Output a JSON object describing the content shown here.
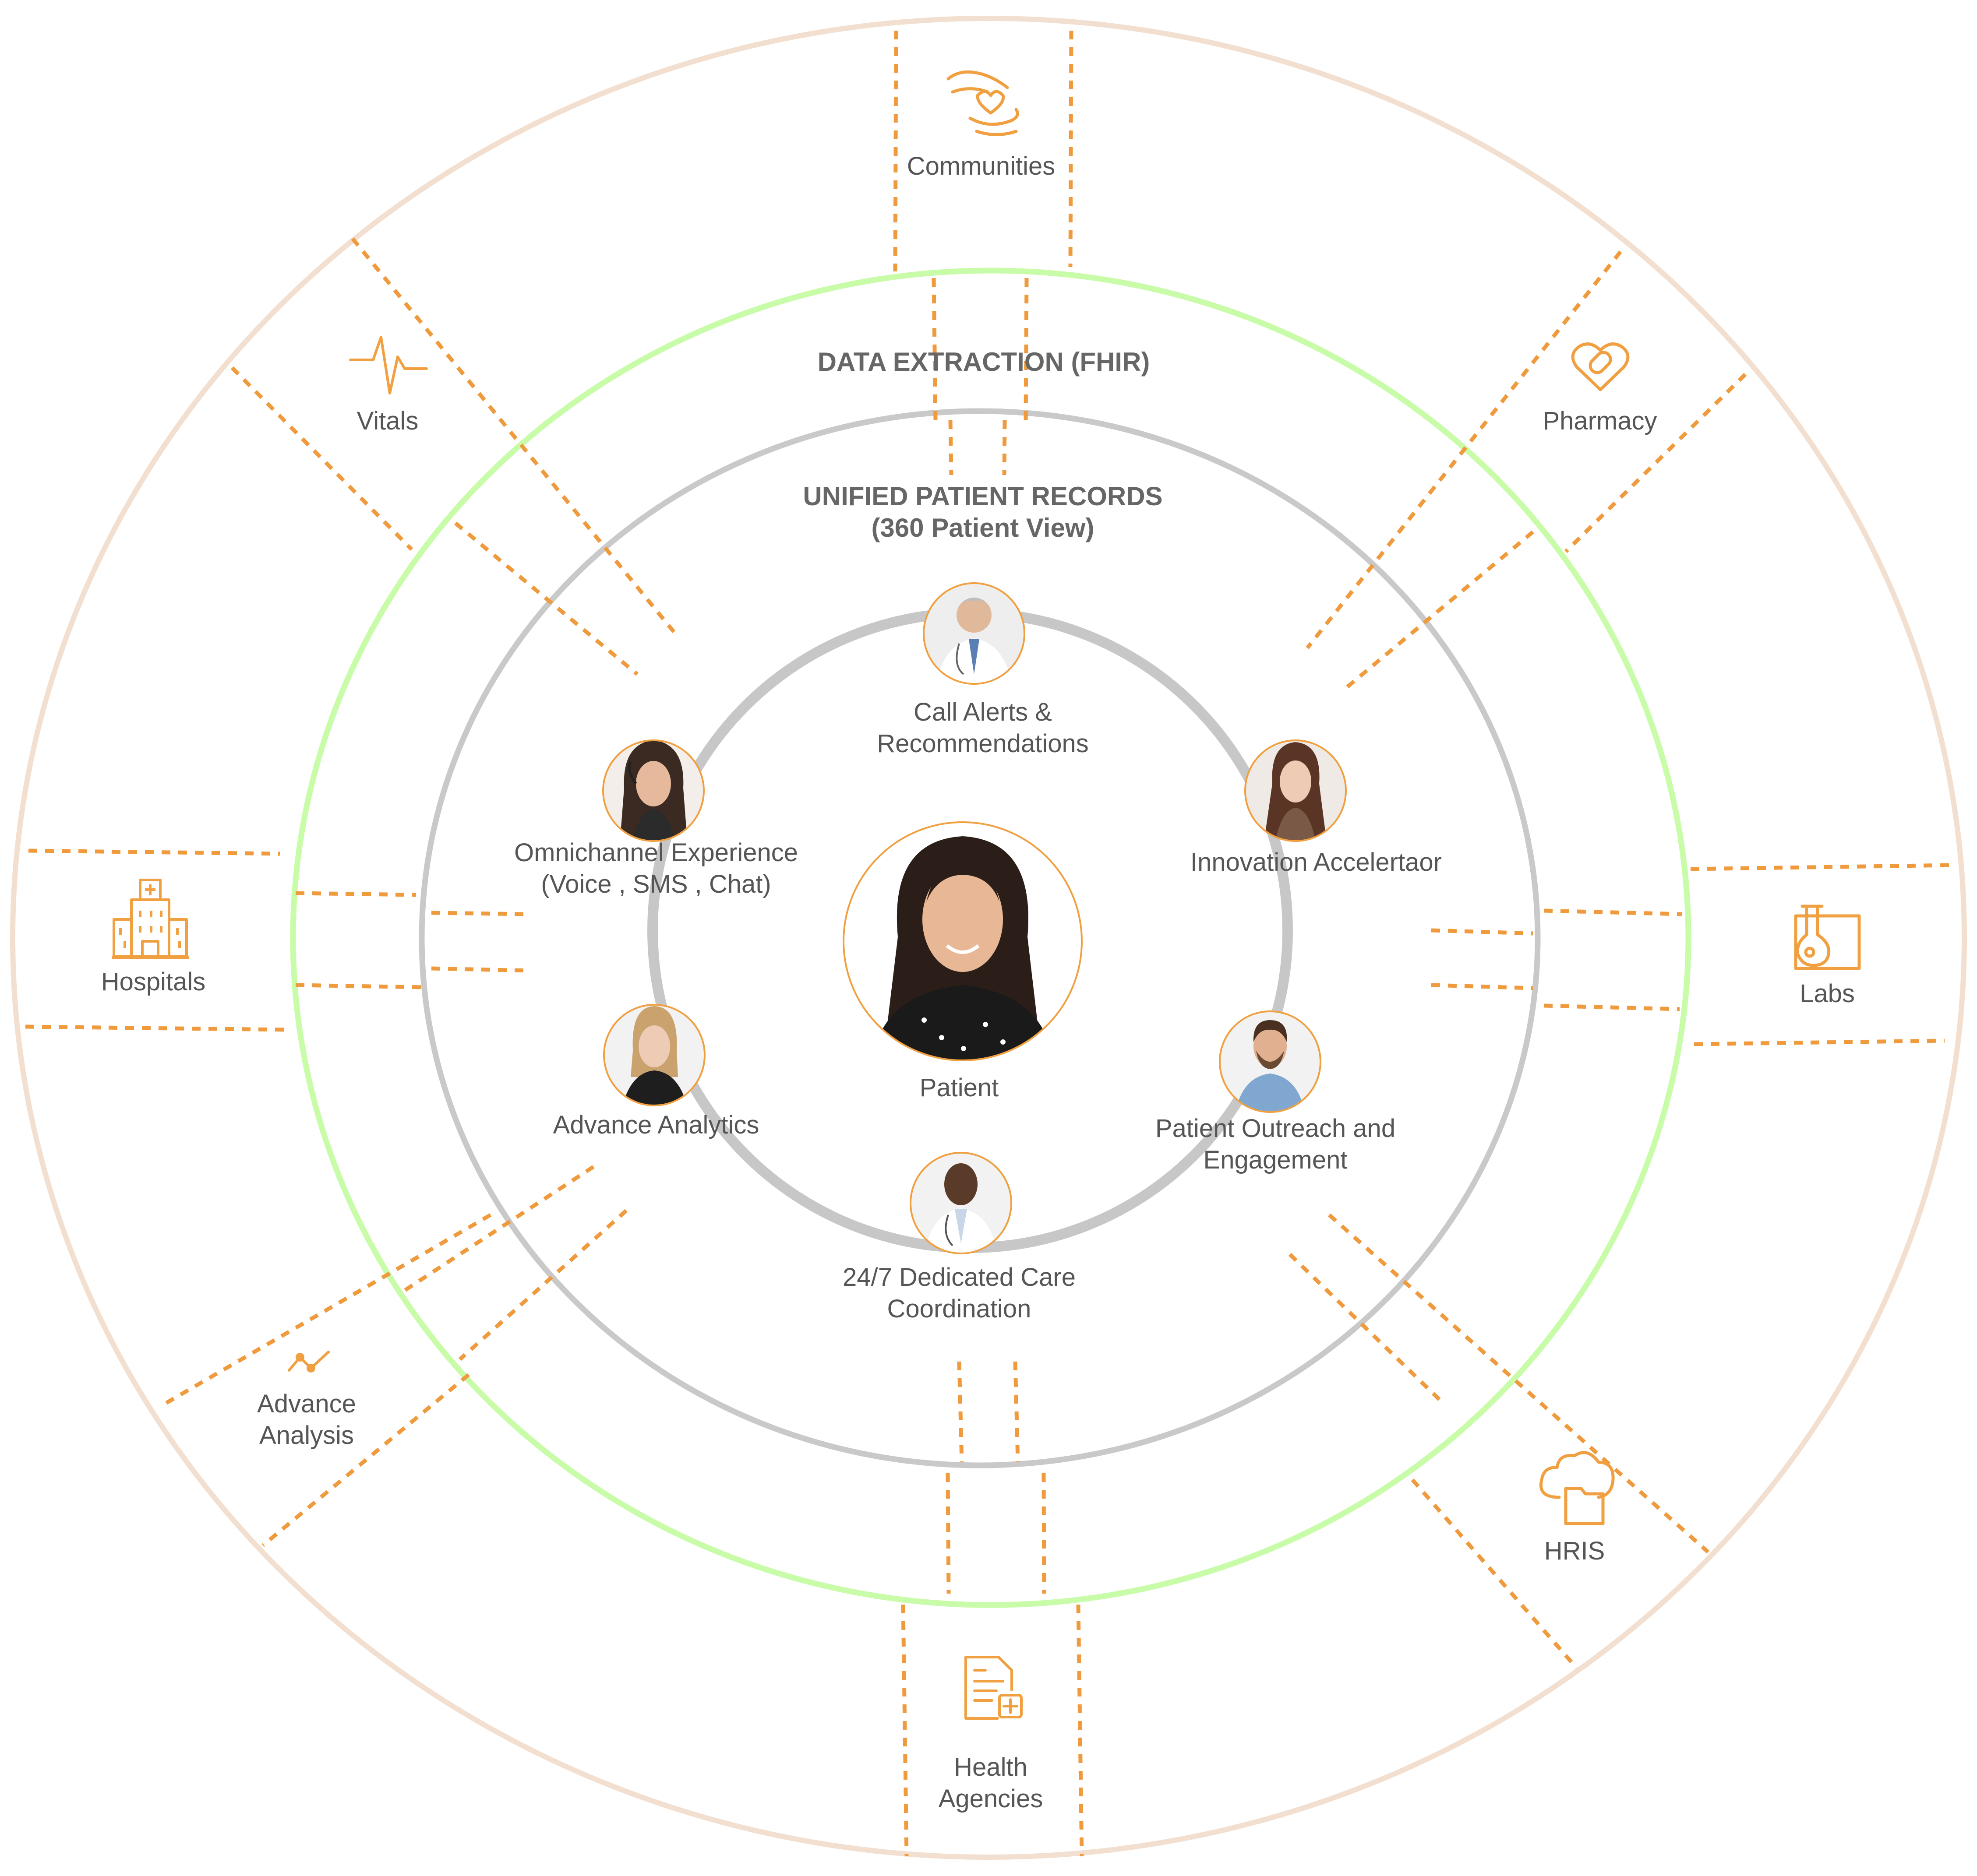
{
  "colors": {
    "outer_ring": "#f2dfcf",
    "middle_ring": "#c8fca8",
    "inner_ring": "#c9c9c9",
    "core_ring": "#c7c7c7",
    "accent": "#f0a040",
    "text": "#555555"
  },
  "rings": {
    "data_extraction": "DATA EXTRACTION (FHIR)",
    "unified_line1": "UNIFIED PATIENT RECORDS",
    "unified_line2": "(360 Patient View)"
  },
  "sources": {
    "communities": {
      "label": "Communities",
      "icon": "caring-hands-icon"
    },
    "vitals": {
      "label": "Vitals",
      "icon": "heartbeat-icon"
    },
    "pharmacy": {
      "label": "Pharmacy",
      "icon": "pill-heart-icon"
    },
    "hospitals": {
      "label": "Hospitals",
      "icon": "hospital-building-icon"
    },
    "labs": {
      "label": "Labs",
      "icon": "flask-icon"
    },
    "advance_analysis": {
      "line1": "Advance",
      "line2": "Analysis",
      "icon": "trend-line-icon"
    },
    "hris": {
      "label": "HRIS",
      "icon": "cloud-folder-icon"
    },
    "health_agencies": {
      "line1": "Health",
      "line2": "Agencies",
      "icon": "medical-document-icon"
    }
  },
  "services": {
    "call_alerts": {
      "line1": "Call Alerts &",
      "line2": "Recommendations",
      "avatar": "doctor-avatar"
    },
    "omnichannel": {
      "line1": "Omnichannel Experience",
      "line2": "(Voice , SMS , Chat)",
      "avatar": "agent-avatar"
    },
    "innovation": {
      "label": "Innovation Accelertaor",
      "avatar": "woman-avatar"
    },
    "patient": {
      "label": "Patient",
      "avatar": "patient-avatar"
    },
    "analytics": {
      "label": "Advance Analytics",
      "avatar": "analyst-avatar"
    },
    "outreach": {
      "line1": "Patient Outreach and",
      "line2": "Engagement",
      "avatar": "man-avatar"
    },
    "care": {
      "line1": "24/7 Dedicated Care",
      "line2": "Coordination",
      "avatar": "care-doctor-avatar"
    }
  }
}
